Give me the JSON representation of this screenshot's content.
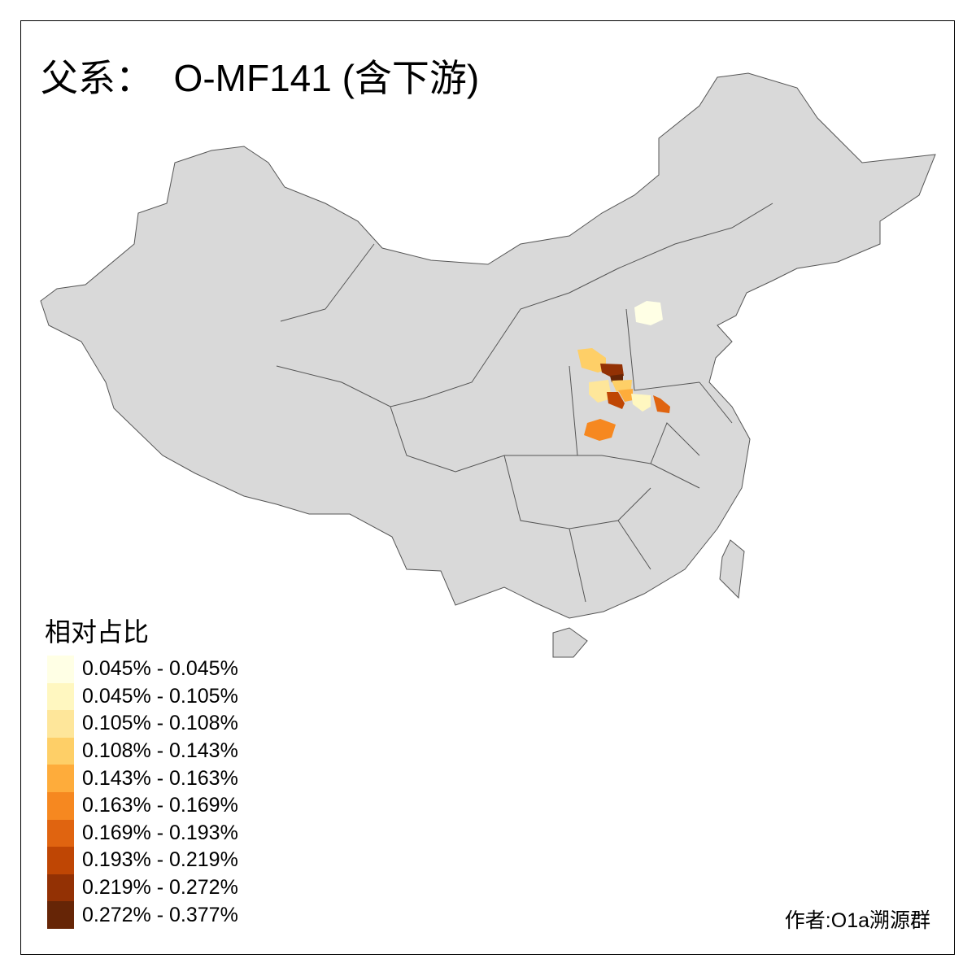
{
  "title": "父系：  O-MF141 (含下游)",
  "legend": {
    "title": "相对占比",
    "items": [
      {
        "label": "0.045% - 0.045%",
        "color": "#FFFFE5"
      },
      {
        "label": "0.045% - 0.105%",
        "color": "#FFF7C0"
      },
      {
        "label": "0.105% - 0.108%",
        "color": "#FEE69A"
      },
      {
        "label": "0.108% - 0.143%",
        "color": "#FECF67"
      },
      {
        "label": "0.143% - 0.163%",
        "color": "#FEAC3B"
      },
      {
        "label": "0.163% - 0.169%",
        "color": "#F68820"
      },
      {
        "label": "0.169% - 0.193%",
        "color": "#E06410"
      },
      {
        "label": "0.193% - 0.219%",
        "color": "#BF4604"
      },
      {
        "label": "0.219% - 0.272%",
        "color": "#933104"
      },
      {
        "label": "0.272% - 0.377%",
        "color": "#662506"
      }
    ]
  },
  "author": "作者:O1a溯源群",
  "map": {
    "base_color": "#D9D9D9",
    "border_color": "#555555"
  }
}
